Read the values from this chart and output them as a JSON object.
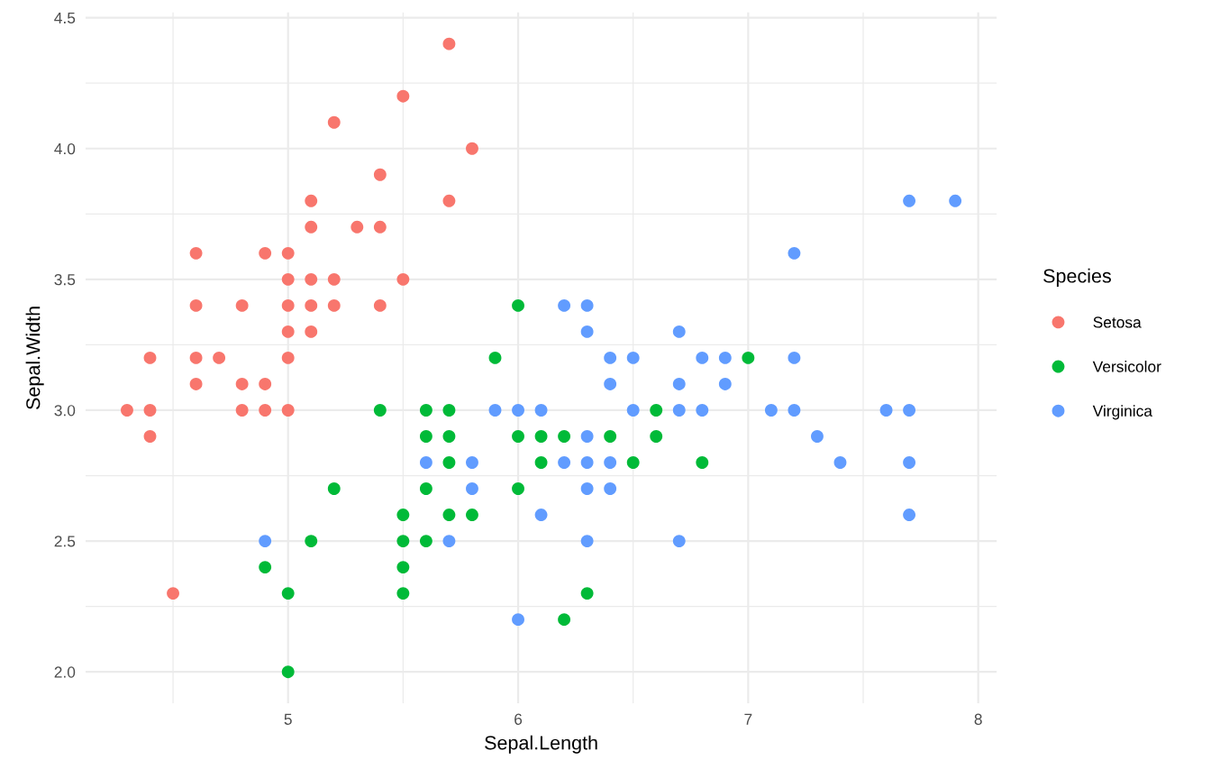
{
  "chart_data": {
    "type": "scatter",
    "xlabel": "Sepal.Length",
    "ylabel": "Sepal.Width",
    "legend_title": "Species",
    "xlim": [
      4.12,
      8.08
    ],
    "ylim": [
      1.88,
      4.52
    ],
    "xticks": [
      {
        "value": 4.5,
        "label": null
      },
      5,
      {
        "value": 5.5,
        "label": null
      },
      6,
      {
        "value": 6.5,
        "label": null
      },
      7,
      {
        "value": 7.5,
        "label": null
      },
      8
    ],
    "yticks": [
      {
        "value": 2,
        "label": "2.0"
      },
      {
        "value": 2.25,
        "label": null
      },
      {
        "value": 2.5,
        "label": "2.5"
      },
      {
        "value": 2.75,
        "label": null
      },
      {
        "value": 3,
        "label": "3.0"
      },
      {
        "value": 3.25,
        "label": null
      },
      {
        "value": 3.5,
        "label": "3.5"
      },
      {
        "value": 3.75,
        "label": null
      },
      {
        "value": 4,
        "label": "4.0"
      },
      {
        "value": 4.25,
        "label": null
      },
      {
        "value": 4.5,
        "label": "4.5"
      }
    ],
    "grid": true,
    "legend": "right",
    "marker": "circle",
    "series": [
      {
        "name": "Setosa",
        "color": "#f8766d",
        "x": [
          4.3,
          4.4,
          4.4,
          4.4,
          4.5,
          4.6,
          4.6,
          4.6,
          4.6,
          4.7,
          4.8,
          4.8,
          4.8,
          4.9,
          4.9,
          4.9,
          5.0,
          5.0,
          5.0,
          5.0,
          5.0,
          5.0,
          5.1,
          5.1,
          5.1,
          5.1,
          5.1,
          5.2,
          5.2,
          5.2,
          5.3,
          5.4,
          5.4,
          5.4,
          5.5,
          5.5,
          5.7,
          5.7,
          5.8
        ],
        "values": [
          3.0,
          3.2,
          3.0,
          2.9,
          2.3,
          3.6,
          3.4,
          3.2,
          3.1,
          3.2,
          3.4,
          3.1,
          3.0,
          3.6,
          3.1,
          3.0,
          3.6,
          3.5,
          3.4,
          3.3,
          3.2,
          3.0,
          3.8,
          3.7,
          3.5,
          3.4,
          3.3,
          4.1,
          3.5,
          3.4,
          3.7,
          3.9,
          3.7,
          3.4,
          4.2,
          3.5,
          4.4,
          3.8,
          4.0
        ]
      },
      {
        "name": "Versicolor",
        "color": "#00ba38",
        "x": [
          4.9,
          5.0,
          5.0,
          5.1,
          5.2,
          5.4,
          5.5,
          5.5,
          5.5,
          5.5,
          5.6,
          5.6,
          5.6,
          5.6,
          5.7,
          5.7,
          5.7,
          5.7,
          5.8,
          5.9,
          6.0,
          6.0,
          6.0,
          6.1,
          6.1,
          6.2,
          6.2,
          6.3,
          6.4,
          6.5,
          6.6,
          6.6,
          6.8,
          7.0
        ],
        "values": [
          2.4,
          2.0,
          2.3,
          2.5,
          2.7,
          3.0,
          2.3,
          2.4,
          2.5,
          2.6,
          2.5,
          2.7,
          2.9,
          3.0,
          2.6,
          2.8,
          2.9,
          3.0,
          2.6,
          3.2,
          2.7,
          2.9,
          3.4,
          2.8,
          2.9,
          2.2,
          2.9,
          2.3,
          2.9,
          2.8,
          2.9,
          3.0,
          2.8,
          3.2
        ]
      },
      {
        "name": "Virginica",
        "color": "#619cff",
        "x": [
          4.9,
          5.6,
          5.7,
          5.8,
          5.8,
          5.9,
          6.0,
          6.0,
          6.1,
          6.1,
          6.2,
          6.2,
          6.3,
          6.3,
          6.3,
          6.3,
          6.3,
          6.3,
          6.4,
          6.4,
          6.4,
          6.4,
          6.5,
          6.5,
          6.7,
          6.7,
          6.7,
          6.7,
          6.8,
          6.8,
          6.9,
          6.9,
          7.1,
          7.2,
          7.2,
          7.2,
          7.3,
          7.4,
          7.6,
          7.7,
          7.7,
          7.7,
          7.7,
          7.9
        ],
        "values": [
          2.5,
          2.8,
          2.5,
          2.7,
          2.8,
          3.0,
          2.2,
          3.0,
          2.6,
          3.0,
          2.8,
          3.4,
          2.5,
          2.7,
          2.8,
          2.9,
          3.3,
          3.4,
          2.7,
          2.8,
          3.1,
          3.2,
          3.0,
          3.2,
          2.5,
          3.0,
          3.1,
          3.3,
          3.0,
          3.2,
          3.1,
          3.2,
          3.0,
          3.0,
          3.2,
          3.6,
          2.9,
          2.8,
          3.0,
          2.6,
          2.8,
          3.0,
          3.8,
          3.8
        ]
      }
    ]
  }
}
